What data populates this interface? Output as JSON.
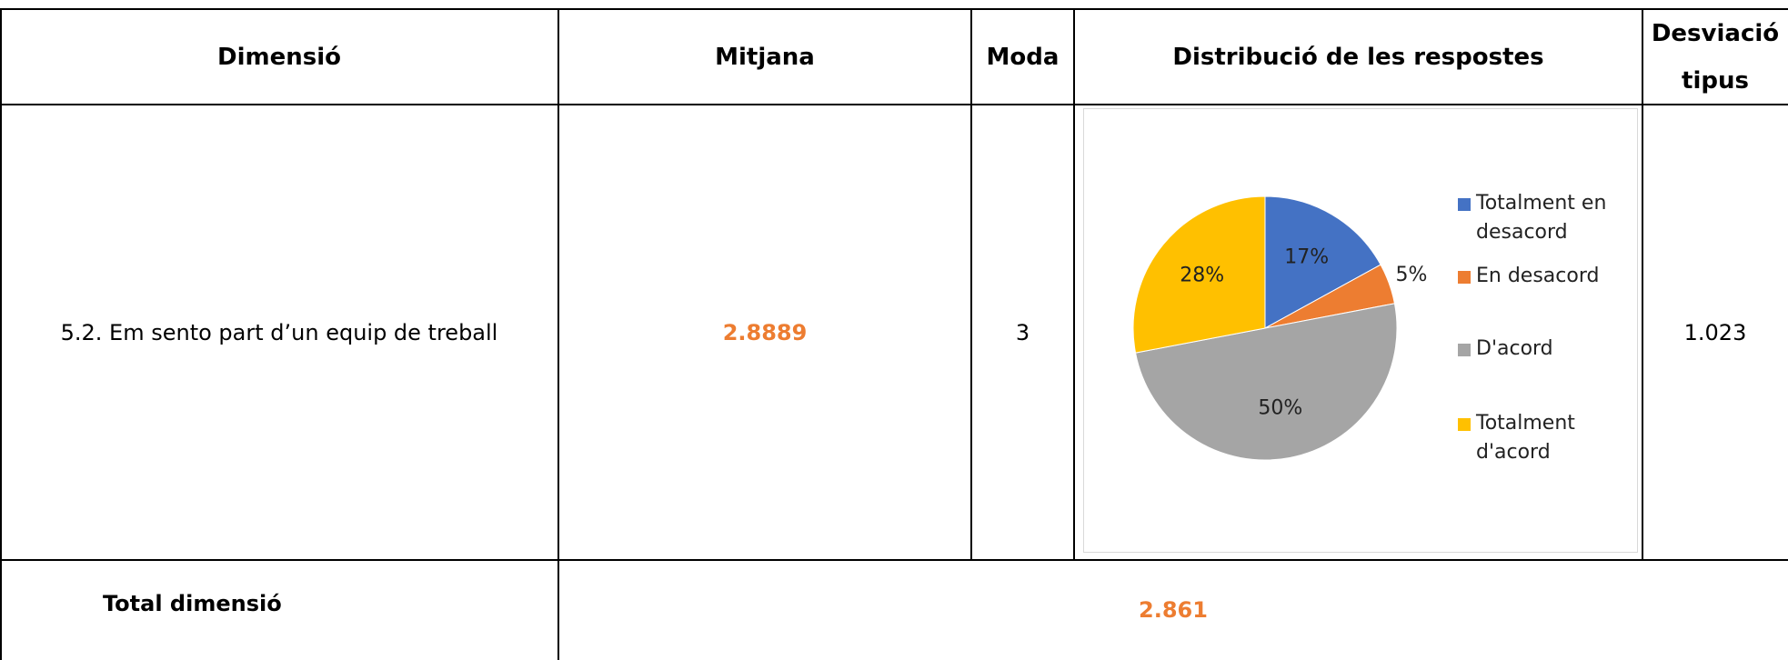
{
  "table": {
    "header": [
      "Dimensió",
      "Mitjana",
      "Moda",
      "Distribució de les respostes",
      "Desviació tipus"
    ],
    "row": {
      "dimension": "5.2. Em sento part d’un equip de treball",
      "mean": 2.8889,
      "mode": 3,
      "sd": 1.023
    },
    "total": {
      "label": "Total dimensió",
      "value": 2.861
    }
  },
  "chart": {
    "type": "pie",
    "categories": [
      "Totalment en desacord",
      "En desacord",
      "D'acord",
      "Totalment d'acord"
    ],
    "values": [
      17,
      5,
      50,
      28
    ],
    "value_labels": [
      "17%",
      "5%",
      "50%",
      "28%"
    ],
    "colors": [
      "#4472c4",
      "#ed7d31",
      "#a5a5a5",
      "#ffc000"
    ]
  }
}
